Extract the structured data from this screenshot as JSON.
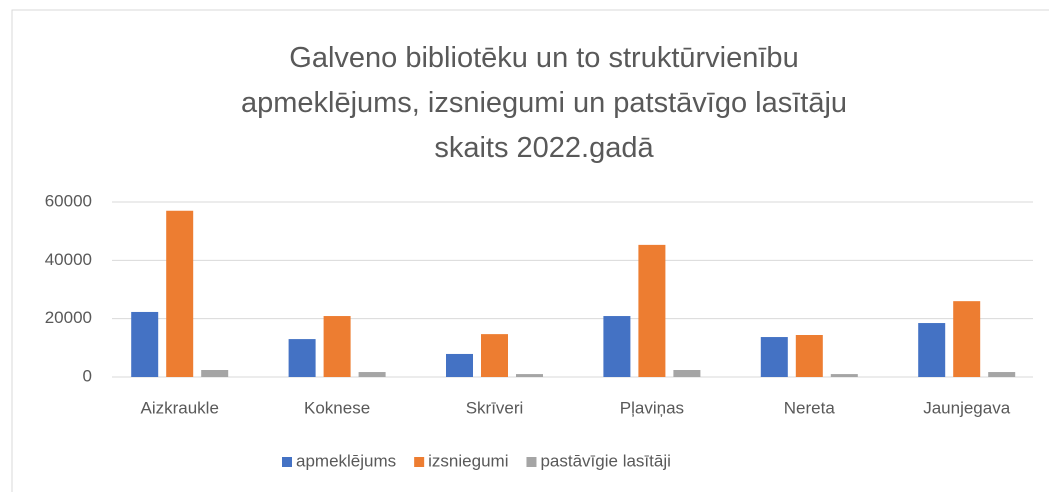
{
  "chart_data": {
    "type": "bar",
    "title": "Galveno bibliotēku un to struktūrvienību apmeklējums, izsniegumi un patstāvīgo lasītāju skaits 2022.gadā",
    "categories": [
      "Aizkraukle",
      "Koknese",
      "Skrīveri",
      "Pļaviņas",
      "Nereta",
      "Jaunjegava"
    ],
    "series": [
      {
        "name": "apmeklējums",
        "color": "#4472c4",
        "values": [
          22300,
          13000,
          7900,
          20900,
          13700,
          18500
        ]
      },
      {
        "name": "izsniegumi",
        "color": "#ed7d31",
        "values": [
          57000,
          20900,
          14700,
          45300,
          14400,
          26000
        ]
      },
      {
        "name": "pastāvīgie lasītāji",
        "color": "#a5a5a5",
        "values": [
          2400,
          1700,
          1000,
          2400,
          1000,
          1700
        ]
      }
    ],
    "ylim": [
      0,
      60000
    ],
    "yticks": [
      0,
      20000,
      40000,
      60000
    ],
    "grid": true,
    "legend": "bottom"
  }
}
